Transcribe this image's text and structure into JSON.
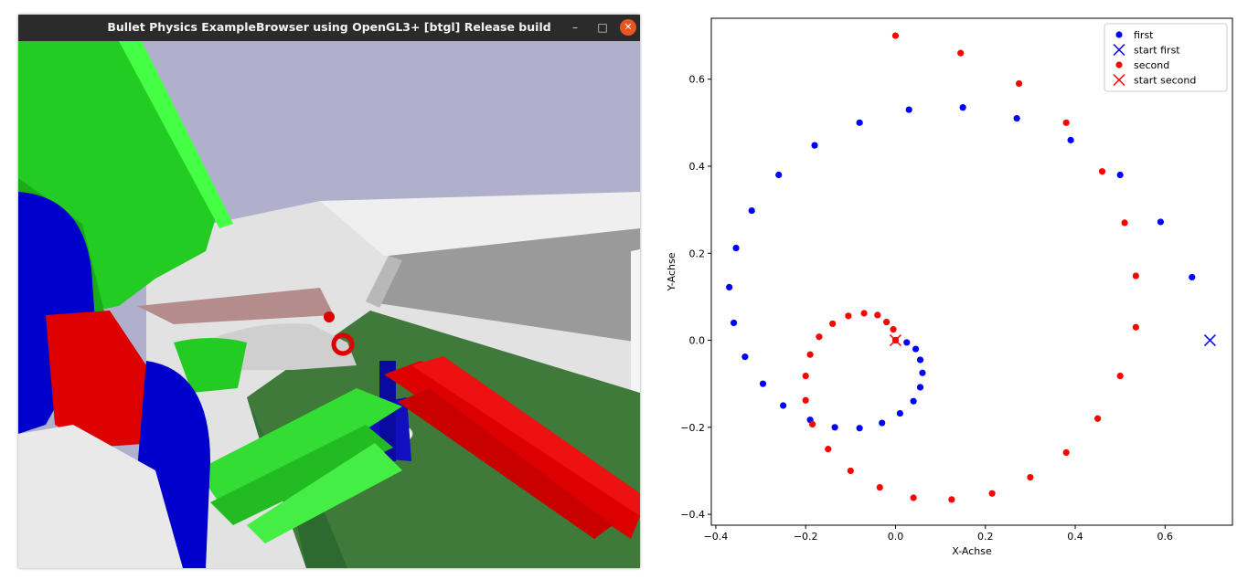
{
  "window": {
    "title": "Bullet Physics ExampleBrowser using OpenGL3+ [btgl] Release build",
    "controls": {
      "minimize": "–",
      "maximize": "□",
      "close": "✕"
    }
  },
  "scene": {
    "sky_color": "#b0b0cd",
    "floor_color": "#e2e2e2",
    "table_color": "#3f7a3b",
    "robot_green": "#22cc22",
    "robot_red": "#dd0000",
    "robot_blue": "#0000cc"
  },
  "chart_data": {
    "type": "scatter",
    "xlabel": "X-Achse",
    "ylabel": "Y-Achse",
    "xlim": [
      -0.41,
      0.75
    ],
    "ylim": [
      -0.425,
      0.74
    ],
    "x_ticks": [
      -0.4,
      -0.2,
      0.0,
      0.2,
      0.4,
      0.6
    ],
    "y_ticks": [
      -0.4,
      -0.2,
      0.0,
      0.2,
      0.4,
      0.6
    ],
    "x_tick_labels": [
      "−0.4",
      "−0.2",
      "0.0",
      "0.2",
      "0.4",
      "0.6"
    ],
    "y_tick_labels": [
      "−0.4",
      "−0.2",
      "0.0",
      "0.2",
      "0.4",
      "0.6"
    ],
    "grid": false,
    "legend_position": "top-right",
    "legend": [
      "first",
      "start first",
      "second",
      "start second"
    ],
    "series": [
      {
        "name": "first",
        "color": "#0000ff",
        "marker": "dot",
        "points": [
          [
            0.66,
            0.145
          ],
          [
            0.59,
            0.272
          ],
          [
            0.5,
            0.38
          ],
          [
            0.39,
            0.46
          ],
          [
            0.27,
            0.51
          ],
          [
            0.15,
            0.535
          ],
          [
            0.03,
            0.53
          ],
          [
            -0.08,
            0.5
          ],
          [
            -0.18,
            0.448
          ],
          [
            -0.26,
            0.38
          ],
          [
            -0.32,
            0.298
          ],
          [
            -0.355,
            0.212
          ],
          [
            -0.37,
            0.122
          ],
          [
            -0.36,
            0.04
          ],
          [
            -0.335,
            -0.038
          ],
          [
            -0.295,
            -0.1
          ],
          [
            -0.25,
            -0.15
          ],
          [
            -0.19,
            -0.183
          ],
          [
            -0.135,
            -0.2
          ],
          [
            -0.08,
            -0.202
          ],
          [
            -0.03,
            -0.19
          ],
          [
            0.01,
            -0.168
          ],
          [
            0.04,
            -0.14
          ],
          [
            0.055,
            -0.108
          ],
          [
            0.06,
            -0.075
          ],
          [
            0.055,
            -0.045
          ],
          [
            0.045,
            -0.02
          ],
          [
            0.025,
            -0.005
          ],
          [
            0.0,
            0.0
          ]
        ]
      },
      {
        "name": "start first",
        "color": "#0000ff",
        "marker": "x",
        "points": [
          [
            0.7,
            0.0
          ]
        ]
      },
      {
        "name": "second",
        "color": "#ff0000",
        "marker": "dot",
        "points": [
          [
            0.0,
            0.7
          ],
          [
            0.145,
            0.66
          ],
          [
            0.275,
            0.59
          ],
          [
            0.38,
            0.5
          ],
          [
            0.46,
            0.388
          ],
          [
            0.51,
            0.27
          ],
          [
            0.535,
            0.148
          ],
          [
            0.535,
            0.03
          ],
          [
            0.5,
            -0.082
          ],
          [
            0.45,
            -0.18
          ],
          [
            0.38,
            -0.258
          ],
          [
            0.3,
            -0.315
          ],
          [
            0.215,
            -0.352
          ],
          [
            0.125,
            -0.366
          ],
          [
            0.04,
            -0.362
          ],
          [
            -0.035,
            -0.338
          ],
          [
            -0.1,
            -0.3
          ],
          [
            -0.15,
            -0.25
          ],
          [
            -0.185,
            -0.193
          ],
          [
            -0.2,
            -0.138
          ],
          [
            -0.2,
            -0.082
          ],
          [
            -0.19,
            -0.033
          ],
          [
            -0.17,
            0.008
          ],
          [
            -0.14,
            0.038
          ],
          [
            -0.105,
            0.056
          ],
          [
            -0.07,
            0.062
          ],
          [
            -0.04,
            0.058
          ],
          [
            -0.02,
            0.042
          ],
          [
            -0.005,
            0.025
          ],
          [
            0.0,
            0.0
          ]
        ]
      },
      {
        "name": "start second",
        "color": "#ff0000",
        "marker": "x",
        "points": [
          [
            0.0,
            0.0
          ]
        ]
      }
    ]
  }
}
